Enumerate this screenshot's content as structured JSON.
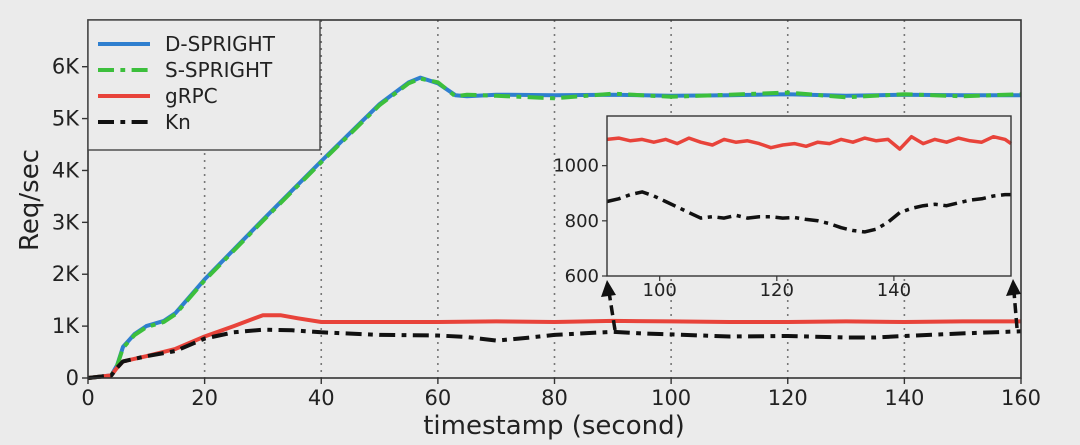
{
  "chart_data": {
    "type": "line",
    "xlabel": "timestamp (second)",
    "ylabel": "Req/sec",
    "xlim": [
      0,
      160
    ],
    "ylim": [
      0,
      6900
    ],
    "xticks": [
      0,
      20,
      40,
      60,
      80,
      100,
      120,
      140,
      160
    ],
    "xtick_labels": [
      "0",
      "20",
      "40",
      "60",
      "80",
      "100",
      "120",
      "140",
      "160"
    ],
    "yticks": [
      0,
      1000,
      2000,
      3000,
      4000,
      5000,
      6000
    ],
    "ytick_labels": [
      "0",
      "1K",
      "2K",
      "3K",
      "4K",
      "5K",
      "6K"
    ],
    "grid": "vertical dotted",
    "legend_position": "top-left",
    "series": [
      {
        "name": "D-SPRIGHT",
        "color": "#2f7fcf",
        "dash": "solid",
        "x": [
          0,
          4,
          5,
          6,
          8,
          10,
          13,
          15,
          20,
          30,
          40,
          50,
          55,
          57,
          60,
          63,
          65,
          70,
          80,
          90,
          100,
          110,
          120,
          130,
          140,
          150,
          160
        ],
        "y": [
          0,
          50,
          250,
          600,
          850,
          1000,
          1100,
          1250,
          1900,
          3050,
          4180,
          5280,
          5700,
          5790,
          5680,
          5450,
          5430,
          5460,
          5450,
          5460,
          5440,
          5450,
          5470,
          5440,
          5460,
          5450,
          5450
        ]
      },
      {
        "name": "S-SPRIGHT",
        "color": "#3cbf3c",
        "dash": "dashdot",
        "x": [
          0,
          4,
          5,
          6,
          8,
          10,
          13,
          15,
          20,
          30,
          40,
          50,
          55,
          57,
          60,
          63,
          65,
          70,
          80,
          90,
          100,
          110,
          120,
          130,
          140,
          150,
          160
        ],
        "y": [
          0,
          50,
          240,
          580,
          830,
          980,
          1080,
          1230,
          1880,
          3030,
          4160,
          5260,
          5680,
          5770,
          5700,
          5430,
          5460,
          5440,
          5390,
          5480,
          5420,
          5460,
          5500,
          5410,
          5470,
          5430,
          5470
        ]
      },
      {
        "name": "gRPC",
        "color": "#e8433a",
        "dash": "solid",
        "x": [
          0,
          4,
          5,
          6,
          10,
          15,
          20,
          25,
          30,
          33,
          36,
          40,
          50,
          60,
          70,
          80,
          90,
          100,
          110,
          120,
          130,
          140,
          150,
          160
        ],
        "y": [
          0,
          50,
          200,
          320,
          420,
          560,
          800,
          1000,
          1210,
          1210,
          1150,
          1080,
          1080,
          1080,
          1090,
          1080,
          1100,
          1090,
          1080,
          1080,
          1090,
          1080,
          1090,
          1090
        ]
      },
      {
        "name": "Kn",
        "color": "#111111",
        "dash": "dashdot",
        "x": [
          0,
          4,
          5,
          6,
          10,
          15,
          20,
          25,
          30,
          35,
          40,
          50,
          60,
          65,
          70,
          75,
          80,
          90,
          95,
          100,
          110,
          120,
          130,
          135,
          140,
          150,
          160
        ],
        "y": [
          0,
          50,
          200,
          320,
          420,
          520,
          760,
          880,
          930,
          920,
          880,
          830,
          820,
          790,
          720,
          770,
          830,
          890,
          860,
          840,
          800,
          810,
          780,
          780,
          810,
          860,
          900
        ]
      }
    ],
    "inset": {
      "xlim": [
        91,
        160
      ],
      "ylim": [
        600,
        1180
      ],
      "xticks": [
        100,
        120,
        140
      ],
      "xtick_labels": [
        "100",
        "120",
        "140"
      ],
      "yticks": [
        600,
        800,
        1000
      ],
      "ytick_labels": [
        "600",
        "800",
        "1000"
      ],
      "series": [
        {
          "name": "gRPC",
          "color": "#e8433a",
          "dash": "solid",
          "x": [
            91,
            93,
            95,
            97,
            99,
            101,
            103,
            105,
            107,
            109,
            111,
            113,
            115,
            117,
            119,
            121,
            123,
            125,
            127,
            129,
            131,
            133,
            135,
            137,
            139,
            141,
            143,
            145,
            147,
            149,
            151,
            153,
            155,
            157,
            159,
            160
          ],
          "y": [
            1095,
            1100,
            1090,
            1095,
            1085,
            1095,
            1080,
            1100,
            1085,
            1075,
            1095,
            1085,
            1090,
            1080,
            1065,
            1075,
            1080,
            1070,
            1085,
            1080,
            1095,
            1085,
            1100,
            1090,
            1095,
            1060,
            1105,
            1080,
            1095,
            1085,
            1100,
            1090,
            1085,
            1105,
            1095,
            1080
          ]
        },
        {
          "name": "Kn",
          "color": "#111111",
          "dash": "dashdot",
          "x": [
            91,
            93,
            95,
            97,
            99,
            101,
            103,
            105,
            107,
            109,
            111,
            113,
            115,
            117,
            119,
            121,
            123,
            125,
            127,
            129,
            131,
            133,
            135,
            137,
            139,
            141,
            143,
            145,
            147,
            149,
            151,
            153,
            155,
            157,
            159,
            160
          ],
          "y": [
            870,
            880,
            895,
            905,
            890,
            870,
            850,
            830,
            810,
            815,
            810,
            820,
            810,
            815,
            815,
            810,
            812,
            805,
            800,
            790,
            775,
            765,
            760,
            770,
            795,
            830,
            845,
            855,
            860,
            855,
            865,
            875,
            880,
            890,
            895,
            895
          ]
        }
      ]
    }
  }
}
